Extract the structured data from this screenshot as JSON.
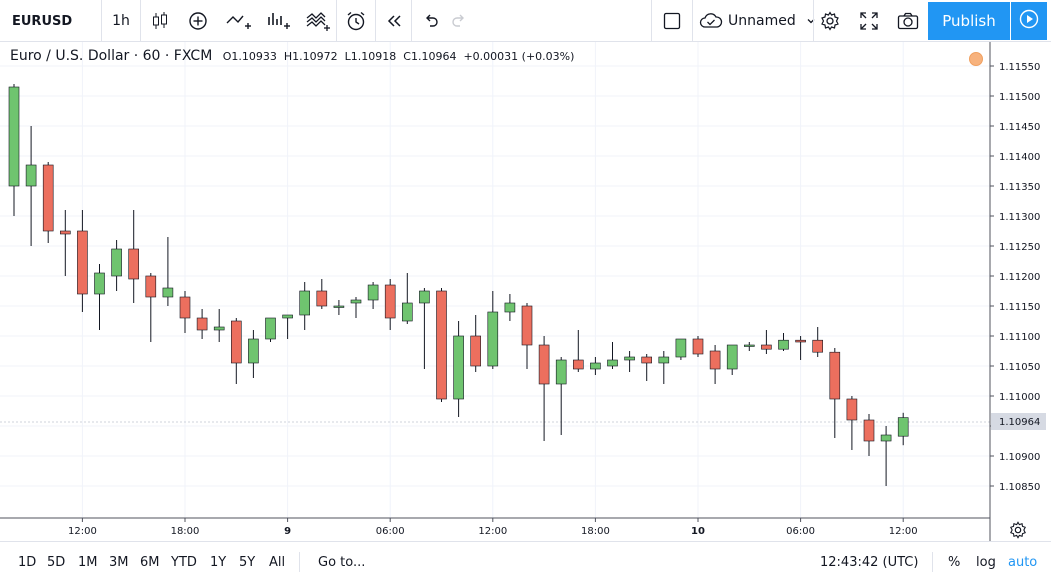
{
  "toolbar": {
    "symbol": "EURUSD",
    "interval": "1h",
    "layout_name": "Unnamed",
    "publish_label": "Publish"
  },
  "legend": {
    "title": "Euro / U.S. Dollar · 60 · FXCM",
    "open": "O1.10933",
    "high": "H1.10972",
    "low": "L1.10918",
    "close": "C1.10964",
    "change": "+0.00031 (+0.03%)"
  },
  "chart_data": {
    "type": "candlestick",
    "price_ticks": [
      "1.11550",
      "1.11500",
      "1.11450",
      "1.11400",
      "1.11350",
      "1.11300",
      "1.11250",
      "1.11200",
      "1.11150",
      "1.11100",
      "1.11050",
      "1.11000",
      "1.10950",
      "1.10900",
      "1.10850"
    ],
    "time_labels": [
      "12:00",
      "18:00",
      "9",
      "06:00",
      "12:00",
      "18:00",
      "10",
      "06:00",
      "12:00"
    ],
    "last_price": "1.10964",
    "ylim": [
      1.1082,
      1.1158
    ],
    "up_color": "#6fc46f",
    "down_color": "#ec6f5e",
    "candles": [
      {
        "o": 1.1135,
        "h": 1.1152,
        "l": 1.113,
        "c": 1.11515
      },
      {
        "o": 1.1135,
        "h": 1.1145,
        "l": 1.1125,
        "c": 1.11385
      },
      {
        "o": 1.11385,
        "h": 1.1139,
        "l": 1.11255,
        "c": 1.11275
      },
      {
        "o": 1.11275,
        "h": 1.1131,
        "l": 1.112,
        "c": 1.1127
      },
      {
        "o": 1.11275,
        "h": 1.1131,
        "l": 1.1114,
        "c": 1.1117
      },
      {
        "o": 1.1117,
        "h": 1.1122,
        "l": 1.1111,
        "c": 1.11205
      },
      {
        "o": 1.112,
        "h": 1.1126,
        "l": 1.11175,
        "c": 1.11245
      },
      {
        "o": 1.11245,
        "h": 1.1131,
        "l": 1.11155,
        "c": 1.11195
      },
      {
        "o": 1.112,
        "h": 1.11205,
        "l": 1.1109,
        "c": 1.11165
      },
      {
        "o": 1.11165,
        "h": 1.11265,
        "l": 1.1115,
        "c": 1.1118
      },
      {
        "o": 1.11165,
        "h": 1.11175,
        "l": 1.11105,
        "c": 1.1113
      },
      {
        "o": 1.1113,
        "h": 1.11145,
        "l": 1.11095,
        "c": 1.1111
      },
      {
        "o": 1.1111,
        "h": 1.11145,
        "l": 1.1109,
        "c": 1.11115
      },
      {
        "o": 1.11125,
        "h": 1.1113,
        "l": 1.1102,
        "c": 1.11055
      },
      {
        "o": 1.11055,
        "h": 1.1111,
        "l": 1.1103,
        "c": 1.11095
      },
      {
        "o": 1.11095,
        "h": 1.1113,
        "l": 1.1109,
        "c": 1.1113
      },
      {
        "o": 1.1113,
        "h": 1.11135,
        "l": 1.11095,
        "c": 1.11135
      },
      {
        "o": 1.11135,
        "h": 1.1119,
        "l": 1.1111,
        "c": 1.11175
      },
      {
        "o": 1.11175,
        "h": 1.11195,
        "l": 1.11145,
        "c": 1.1115
      },
      {
        "o": 1.1115,
        "h": 1.1116,
        "l": 1.11135,
        "c": 1.1115
      },
      {
        "o": 1.11155,
        "h": 1.11165,
        "l": 1.1113,
        "c": 1.1116
      },
      {
        "o": 1.1116,
        "h": 1.1119,
        "l": 1.11145,
        "c": 1.11185
      },
      {
        "o": 1.11185,
        "h": 1.11195,
        "l": 1.1111,
        "c": 1.1113
      },
      {
        "o": 1.11125,
        "h": 1.11205,
        "l": 1.1112,
        "c": 1.11155
      },
      {
        "o": 1.11155,
        "h": 1.1118,
        "l": 1.11045,
        "c": 1.11175
      },
      {
        "o": 1.11175,
        "h": 1.1118,
        "l": 1.1099,
        "c": 1.10995
      },
      {
        "o": 1.10995,
        "h": 1.11125,
        "l": 1.10965,
        "c": 1.111
      },
      {
        "o": 1.111,
        "h": 1.11135,
        "l": 1.1104,
        "c": 1.1105
      },
      {
        "o": 1.1105,
        "h": 1.11175,
        "l": 1.11045,
        "c": 1.1114
      },
      {
        "o": 1.1114,
        "h": 1.1117,
        "l": 1.11125,
        "c": 1.11155
      },
      {
        "o": 1.1115,
        "h": 1.11155,
        "l": 1.11045,
        "c": 1.11085
      },
      {
        "o": 1.11085,
        "h": 1.111,
        "l": 1.10925,
        "c": 1.1102
      },
      {
        "o": 1.1102,
        "h": 1.11065,
        "l": 1.10935,
        "c": 1.1106
      },
      {
        "o": 1.1106,
        "h": 1.1111,
        "l": 1.1104,
        "c": 1.11045
      },
      {
        "o": 1.11045,
        "h": 1.11065,
        "l": 1.11035,
        "c": 1.11055
      },
      {
        "o": 1.1105,
        "h": 1.1109,
        "l": 1.11045,
        "c": 1.1106
      },
      {
        "o": 1.1106,
        "h": 1.11075,
        "l": 1.1104,
        "c": 1.11065
      },
      {
        "o": 1.11065,
        "h": 1.1107,
        "l": 1.11025,
        "c": 1.11055
      },
      {
        "o": 1.11055,
        "h": 1.11075,
        "l": 1.1102,
        "c": 1.11065
      },
      {
        "o": 1.11065,
        "h": 1.11095,
        "l": 1.1106,
        "c": 1.11095
      },
      {
        "o": 1.11095,
        "h": 1.111,
        "l": 1.11065,
        "c": 1.1107
      },
      {
        "o": 1.11075,
        "h": 1.11085,
        "l": 1.1102,
        "c": 1.11045
      },
      {
        "o": 1.11045,
        "h": 1.11085,
        "l": 1.11035,
        "c": 1.11085
      },
      {
        "o": 1.11085,
        "h": 1.1109,
        "l": 1.11075,
        "c": 1.11085
      },
      {
        "o": 1.11085,
        "h": 1.1111,
        "l": 1.1107,
        "c": 1.11078
      },
      {
        "o": 1.11078,
        "h": 1.11105,
        "l": 1.11075,
        "c": 1.11093
      },
      {
        "o": 1.11093,
        "h": 1.111,
        "l": 1.1106,
        "c": 1.1109
      },
      {
        "o": 1.11093,
        "h": 1.11115,
        "l": 1.11065,
        "c": 1.11073
      },
      {
        "o": 1.11073,
        "h": 1.1108,
        "l": 1.1093,
        "c": 1.10995
      },
      {
        "o": 1.10995,
        "h": 1.11,
        "l": 1.1091,
        "c": 1.1096
      },
      {
        "o": 1.1096,
        "h": 1.1097,
        "l": 1.109,
        "c": 1.10925
      },
      {
        "o": 1.10925,
        "h": 1.1095,
        "l": 1.1085,
        "c": 1.10935
      },
      {
        "o": 1.10933,
        "h": 1.10972,
        "l": 1.10918,
        "c": 1.10964
      }
    ]
  },
  "bottom": {
    "ranges": [
      "1D",
      "5D",
      "1M",
      "3M",
      "6M",
      "YTD",
      "1Y",
      "5Y",
      "All"
    ],
    "goto_label": "Go to...",
    "clock": "12:43:42 (UTC)",
    "percent_label": "%",
    "log_label": "log",
    "auto_label": "auto"
  },
  "icons": [
    "candles-icon",
    "add-indicator-icon",
    "compare-icon",
    "bar-chart-icon",
    "templates-icon",
    "alert-icon",
    "replay-icon",
    "undo-icon",
    "redo-icon",
    "fullscreen-square-icon",
    "cloud-icon",
    "chevron-down-icon",
    "gear-icon",
    "expand-icon",
    "camera-icon",
    "play-icon"
  ]
}
